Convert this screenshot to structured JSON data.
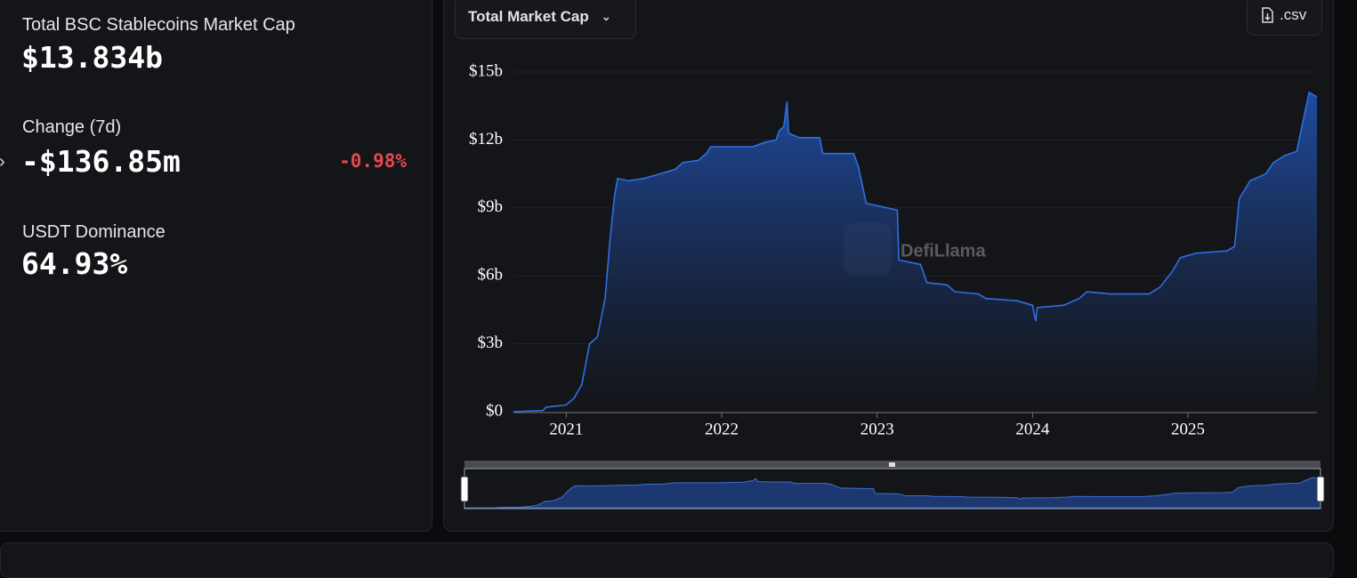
{
  "stats": {
    "title": "Total BSC Stablecoins Market Cap",
    "total": "$13.834b",
    "change_label": "Change (7d)",
    "change": "-$136.85m",
    "change_pct": "-0.98%",
    "dominance_label": "USDT Dominance",
    "dominance": "64.93%"
  },
  "controls": {
    "csv": ".csv"
  },
  "watermark": "DefiLlama",
  "chart_data": {
    "type": "area",
    "x": [
      2020.66,
      2020.85,
      2020.87,
      2021.0,
      2021.05,
      2021.1,
      2021.15,
      2021.2,
      2021.25,
      2021.28,
      2021.31,
      2021.33,
      2021.4,
      2021.5,
      2021.6,
      2021.7,
      2021.75,
      2021.85,
      2021.9,
      2021.93,
      2022.2,
      2022.28,
      2022.35,
      2022.37,
      2022.4,
      2022.42,
      2022.43,
      2022.5,
      2022.63,
      2022.65,
      2022.85,
      2022.88,
      2022.93,
      2023.0,
      2023.13,
      2023.14,
      2023.28,
      2023.32,
      2023.45,
      2023.5,
      2023.65,
      2023.7,
      2023.9,
      2024.0,
      2024.02,
      2024.03,
      2024.2,
      2024.3,
      2024.35,
      2024.5,
      2024.75,
      2024.82,
      2024.9,
      2024.95,
      2025.05,
      2025.25,
      2025.3,
      2025.33,
      2025.4,
      2025.5,
      2025.55,
      2025.62,
      2025.7,
      2025.73,
      2025.78,
      2025.83
    ],
    "series": [
      {
        "name": "Total Market Cap",
        "color": "#2f6fe0",
        "values": [
          0.0,
          0.05,
          0.2,
          0.3,
          0.6,
          1.2,
          3.0,
          3.3,
          5.0,
          7.5,
          9.5,
          10.3,
          10.2,
          10.3,
          10.5,
          10.7,
          11.0,
          11.1,
          11.4,
          11.7,
          11.7,
          11.9,
          12.0,
          12.4,
          12.6,
          13.7,
          12.3,
          12.1,
          12.1,
          11.4,
          11.4,
          10.8,
          9.2,
          9.1,
          8.9,
          6.7,
          6.5,
          5.7,
          5.6,
          5.3,
          5.2,
          5.0,
          4.9,
          4.7,
          4.0,
          4.6,
          4.7,
          5.0,
          5.3,
          5.2,
          5.2,
          5.5,
          6.2,
          6.8,
          7.0,
          7.1,
          7.3,
          9.4,
          10.2,
          10.5,
          11.0,
          11.3,
          11.5,
          12.5,
          14.1,
          13.9
        ]
      }
    ],
    "xlim": [
      2020.66,
      2025.83
    ],
    "xticks": [
      2021,
      2022,
      2023,
      2024,
      2025
    ],
    "ylim": [
      0,
      15
    ],
    "yticks": [
      {
        "value": 0,
        "label": "$0"
      },
      {
        "value": 3,
        "label": "$3b"
      },
      {
        "value": 6,
        "label": "$6b"
      },
      {
        "value": 9,
        "label": "$9b"
      },
      {
        "value": 12,
        "label": "$12b"
      },
      {
        "value": 15,
        "label": "$15b"
      }
    ],
    "grid": true
  }
}
